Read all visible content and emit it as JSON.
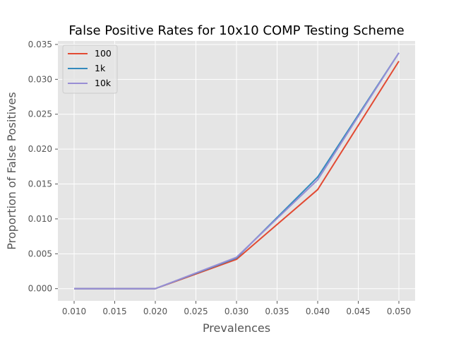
{
  "chart_data": {
    "type": "line",
    "title": "False Positive Rates for 10x10 COMP Testing Scheme",
    "xlabel": "Prevalences",
    "ylabel": "Proportion of False Positives",
    "x": [
      0.01,
      0.02,
      0.03,
      0.04,
      0.05
    ],
    "xlim": [
      0.008,
      0.052
    ],
    "ylim": [
      -0.00175,
      0.0355
    ],
    "xticks": [
      "0.010",
      "0.015",
      "0.020",
      "0.025",
      "0.030",
      "0.035",
      "0.040",
      "0.045",
      "0.050"
    ],
    "yticks": [
      "0.000",
      "0.005",
      "0.010",
      "0.015",
      "0.020",
      "0.025",
      "0.030",
      "0.035"
    ],
    "grid": true,
    "legend_position": "top-left",
    "series": [
      {
        "name": "100",
        "color": "#E24A33",
        "values": [
          0.0,
          0.0,
          0.0042,
          0.0142,
          0.0326
        ]
      },
      {
        "name": "1k",
        "color": "#348ABD",
        "values": [
          0.0,
          0.0,
          0.0044,
          0.016,
          0.0338
        ]
      },
      {
        "name": "10k",
        "color": "#988ED5",
        "values": [
          0.0,
          0.0,
          0.0045,
          0.0156,
          0.0338
        ]
      }
    ]
  }
}
